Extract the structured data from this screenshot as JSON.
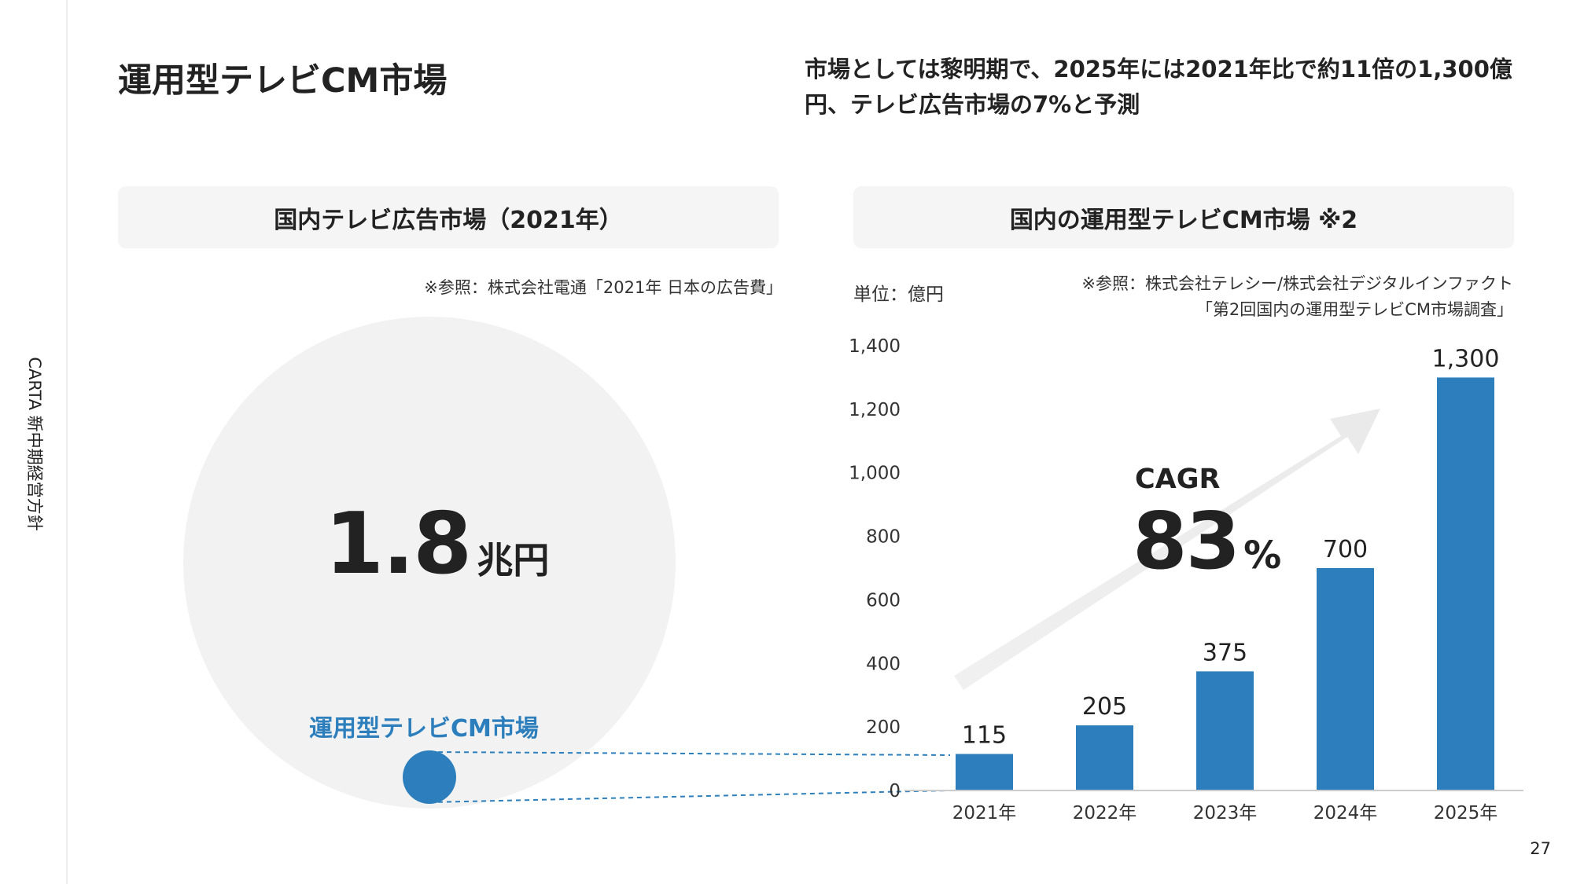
{
  "side_label": "CARTA 新中期経営方針",
  "title": "運用型テレビCM市場",
  "headline": "市場としては黎明期で、2025年には2021年比で約11倍の1,300億円、テレビ広告市場の7%と予測",
  "left_panel": {
    "header": "国内テレビ広告市場（2021年）",
    "source": "※参照：株式会社電通「2021年 日本の広告費」",
    "market_size_value": "1.8",
    "market_size_unit": "兆円",
    "sub_market_label": "運用型テレビCM市場"
  },
  "right_panel": {
    "header": "国内の運用型テレビCM市場 ※2",
    "unit": "単位：億円",
    "source_line1": "※参照：株式会社テレシー/株式会社デジタルインファクト",
    "source_line2": "「第2回国内の運用型テレビCM市場調査」",
    "cagr_label": "CAGR",
    "cagr_value": "83",
    "cagr_unit": "%"
  },
  "chart_data": {
    "type": "bar",
    "categories": [
      "2021年",
      "2022年",
      "2023年",
      "2024年",
      "2025年"
    ],
    "values": [
      115,
      205,
      375,
      700,
      1300
    ],
    "value_labels": [
      "115",
      "205",
      "375",
      "700",
      "1,300"
    ],
    "yticks": [
      "0",
      "200",
      "400",
      "600",
      "800",
      "1,000",
      "1,200",
      "1,400"
    ],
    "ylim": [
      0,
      1400
    ],
    "ylabel": "単位：億円",
    "bar_color": "#2c7fbc",
    "grid": false
  },
  "page_number": "27"
}
